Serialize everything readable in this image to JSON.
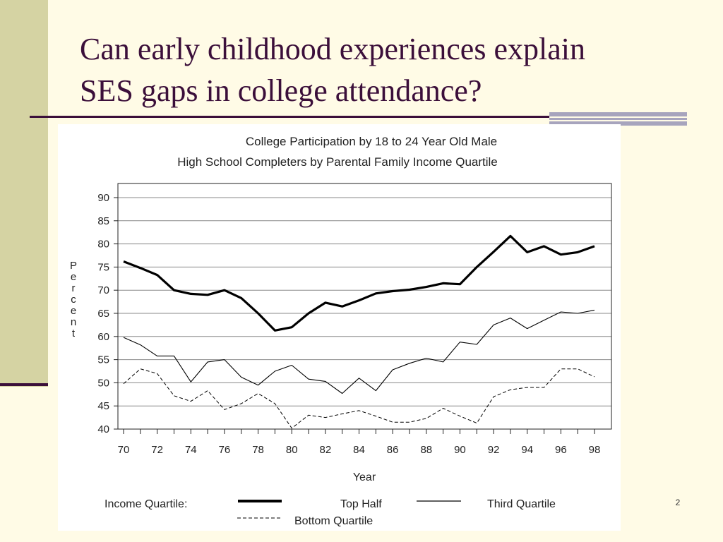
{
  "slide": {
    "title_line1": "Can early childhood experiences explain",
    "title_line2": "SES gaps in college attendance?",
    "page_number": "2"
  },
  "colors": {
    "background": "#fffbe6",
    "title": "#3b0f3a",
    "accent_bar": "#d5d3a3",
    "rule_bars": "#a7a4bd"
  },
  "chart_data": {
    "type": "line",
    "title_line1": "College Participation by 18 to 24 Year Old Male",
    "title_line2": "High School Completers by Parental Family Income Quartile",
    "xlabel": "Year",
    "ylabel": "Percent",
    "x": [
      70,
      71,
      72,
      73,
      74,
      75,
      76,
      77,
      78,
      79,
      80,
      81,
      82,
      83,
      84,
      85,
      86,
      87,
      88,
      89,
      90,
      91,
      92,
      93,
      94,
      95,
      96,
      97,
      98
    ],
    "xlim": [
      70,
      98
    ],
    "ylim": [
      40,
      90
    ],
    "x_ticks": [
      "70",
      "72",
      "74",
      "76",
      "78",
      "80",
      "82",
      "84",
      "86",
      "88",
      "90",
      "92",
      "94",
      "96",
      "98"
    ],
    "y_ticks": [
      "40",
      "45",
      "50",
      "55",
      "60",
      "65",
      "70",
      "75",
      "80",
      "85",
      "90"
    ],
    "grid": "horizontal",
    "legend": {
      "title": "Income Quartile:",
      "placement": "bottom"
    },
    "series": [
      {
        "name": "Top Half",
        "style": "thick-solid",
        "values": [
          76.2,
          74.8,
          73.3,
          70.0,
          69.2,
          69.0,
          70.0,
          68.3,
          65.0,
          61.3,
          62.0,
          65.0,
          67.3,
          66.5,
          67.8,
          69.3,
          69.8,
          70.1,
          70.7,
          71.5,
          71.3,
          75.0,
          78.3,
          81.7,
          78.2,
          79.5,
          77.7,
          78.2,
          79.5
        ]
      },
      {
        "name": "Third Quartile",
        "style": "thin-solid",
        "values": [
          59.8,
          58.2,
          55.8,
          55.8,
          50.2,
          54.5,
          55.0,
          51.2,
          49.5,
          52.5,
          53.8,
          50.8,
          50.3,
          47.7,
          51.0,
          48.3,
          52.8,
          54.2,
          55.3,
          54.5,
          58.8,
          58.3,
          62.5,
          64.0,
          61.7,
          63.5,
          65.3,
          65.0,
          65.7
        ]
      },
      {
        "name": "Bottom Quartile",
        "style": "dashed",
        "values": [
          49.8,
          53.0,
          52.0,
          47.2,
          46.0,
          48.3,
          44.2,
          45.5,
          47.7,
          45.5,
          40.2,
          43.0,
          42.5,
          43.3,
          44.0,
          42.8,
          41.5,
          41.5,
          42.3,
          44.5,
          42.8,
          41.3,
          47.0,
          48.5,
          49.0,
          49.0,
          53.0,
          53.0,
          51.3
        ]
      }
    ]
  }
}
